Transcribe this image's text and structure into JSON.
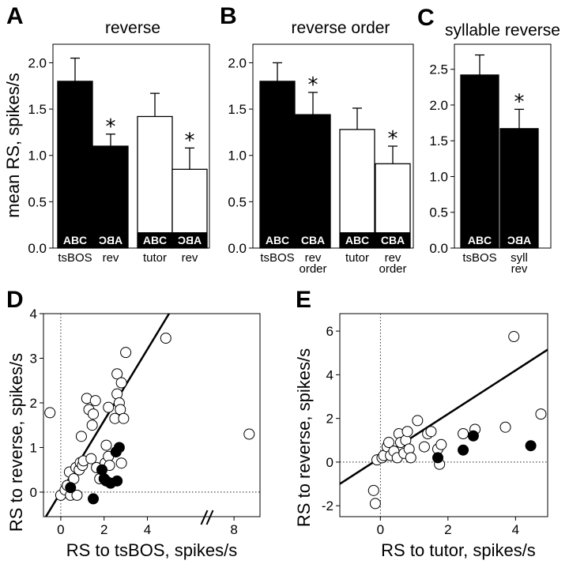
{
  "chart_data": [
    {
      "id": "A",
      "type": "bar",
      "title": "reverse",
      "ylabel": "mean RS, spikes/s",
      "ylim": [
        0,
        2.2
      ],
      "yticks": [
        "0.0",
        "0.5",
        "1.0",
        "1.5",
        "2.0"
      ],
      "categories": [
        "tsBOS",
        "rev",
        "tutor",
        "rev"
      ],
      "bar_labels": [
        "ABC",
        "ABC",
        "ABC",
        "ABC"
      ],
      "values": [
        1.8,
        1.1,
        1.42,
        0.85
      ],
      "errors": [
        0.25,
        0.13,
        0.25,
        0.23
      ],
      "colors": [
        "#000000",
        "#000000",
        "#ffffff",
        "#ffffff"
      ],
      "significant": [
        false,
        true,
        false,
        true
      ]
    },
    {
      "id": "B",
      "type": "bar",
      "title": "reverse order",
      "ylabel": "",
      "ylim": [
        0,
        2.2
      ],
      "yticks": [
        "0.0",
        "0.5",
        "1.0",
        "1.5",
        "2.0"
      ],
      "categories": [
        "tsBOS",
        "rev order",
        "tutor",
        "rev order"
      ],
      "bar_labels": [
        "ABC",
        "CBA",
        "ABC",
        "CBA"
      ],
      "values": [
        1.8,
        1.44,
        1.28,
        0.91
      ],
      "errors": [
        0.2,
        0.24,
        0.23,
        0.19
      ],
      "colors": [
        "#000000",
        "#000000",
        "#ffffff",
        "#ffffff"
      ],
      "significant": [
        false,
        true,
        false,
        true
      ]
    },
    {
      "id": "C",
      "type": "bar",
      "title": "syllable reverse",
      "ylabel": "",
      "ylim": [
        0,
        2.85
      ],
      "yticks": [
        "0.0",
        "0.5",
        "1.0",
        "1.5",
        "2.0",
        "2.5"
      ],
      "categories": [
        "tsBOS",
        "syll rev"
      ],
      "bar_labels": [
        "ABC",
        "ABC"
      ],
      "values": [
        2.42,
        1.67
      ],
      "errors": [
        0.28,
        0.27
      ],
      "colors": [
        "#000000",
        "#000000"
      ],
      "significant": [
        false,
        true
      ]
    },
    {
      "id": "D",
      "type": "scatter",
      "xlabel": "RS to tsBOS, spikes/s",
      "ylabel": "RS to reverse, spikes/s",
      "xlim": [
        -0.8,
        9.2
      ],
      "ylim": [
        -0.55,
        4.0
      ],
      "xticks": [
        "0",
        "2",
        "4",
        "8"
      ],
      "yticks": [
        "0",
        "1",
        "2",
        "3",
        "4"
      ],
      "line": {
        "slope": 0.8,
        "intercept": 0
      },
      "axis_break": "between 6 and 8",
      "open_points": [
        [
          -0.5,
          1.78
        ],
        [
          0.0,
          -0.07
        ],
        [
          0.2,
          0.05
        ],
        [
          0.3,
          0.15
        ],
        [
          0.4,
          0.45
        ],
        [
          0.45,
          -0.07
        ],
        [
          0.6,
          0.3
        ],
        [
          0.7,
          0.55
        ],
        [
          0.75,
          -0.07
        ],
        [
          0.85,
          0.5
        ],
        [
          0.9,
          0.66
        ],
        [
          0.95,
          1.25
        ],
        [
          1.0,
          0.6
        ],
        [
          1.05,
          0.7
        ],
        [
          1.2,
          2.1
        ],
        [
          1.3,
          1.85
        ],
        [
          1.4,
          0.75
        ],
        [
          1.45,
          1.5
        ],
        [
          1.5,
          1.75
        ],
        [
          1.6,
          2.05
        ],
        [
          1.65,
          0.55
        ],
        [
          1.8,
          0.3
        ],
        [
          2.05,
          0.65
        ],
        [
          2.1,
          1.05
        ],
        [
          2.2,
          0.8
        ],
        [
          2.2,
          1.9
        ],
        [
          2.25,
          0.6
        ],
        [
          2.5,
          1.65
        ],
        [
          2.6,
          2.2
        ],
        [
          2.6,
          2.65
        ],
        [
          2.7,
          2.0
        ],
        [
          2.75,
          1.85
        ],
        [
          2.8,
          0.65
        ],
        [
          2.8,
          2.45
        ],
        [
          2.9,
          1.65
        ],
        [
          3.0,
          3.13
        ],
        [
          4.85,
          3.45
        ],
        [
          8.7,
          1.3
        ]
      ],
      "filled_points": [
        [
          0.45,
          0.1
        ],
        [
          1.5,
          -0.15
        ],
        [
          1.9,
          0.5
        ],
        [
          2.0,
          0.3
        ],
        [
          2.1,
          0.25
        ],
        [
          2.3,
          0.2
        ],
        [
          2.55,
          0.9
        ],
        [
          2.6,
          0.25
        ],
        [
          2.7,
          1.0
        ]
      ]
    },
    {
      "id": "E",
      "type": "scatter",
      "xlabel": "RS to tutor, spikes/s",
      "ylabel": "RS to reverse, spikes/s",
      "xlim": [
        -1.2,
        4.95
      ],
      "ylim": [
        -2.5,
        6.8
      ],
      "xticks": [
        "0",
        "2",
        "4"
      ],
      "yticks": [
        "-2",
        "0",
        "2",
        "4",
        "6"
      ],
      "line": {
        "slope": 1.0,
        "intercept": 0.2
      },
      "open_points": [
        [
          -0.2,
          -1.3
        ],
        [
          -0.15,
          -1.9
        ],
        [
          -0.1,
          0.1
        ],
        [
          0.05,
          0.2
        ],
        [
          0.1,
          0.3
        ],
        [
          0.2,
          0.7
        ],
        [
          0.25,
          0.9
        ],
        [
          0.3,
          0.3
        ],
        [
          0.4,
          0.5
        ],
        [
          0.5,
          0.2
        ],
        [
          0.55,
          1.3
        ],
        [
          0.6,
          0.9
        ],
        [
          0.7,
          0.4
        ],
        [
          0.75,
          1.0
        ],
        [
          0.8,
          1.4
        ],
        [
          0.85,
          0.6
        ],
        [
          0.9,
          0.2
        ],
        [
          1.1,
          1.9
        ],
        [
          1.3,
          0.7
        ],
        [
          1.4,
          1.3
        ],
        [
          1.5,
          1.4
        ],
        [
          1.7,
          0.6
        ],
        [
          1.75,
          -0.1
        ],
        [
          1.8,
          0.8
        ],
        [
          2.45,
          1.3
        ],
        [
          2.8,
          1.5
        ],
        [
          3.7,
          1.6
        ],
        [
          3.95,
          5.75
        ],
        [
          4.75,
          2.2
        ]
      ],
      "filled_points": [
        [
          1.7,
          0.2
        ],
        [
          2.45,
          0.55
        ],
        [
          2.75,
          1.2
        ],
        [
          4.45,
          0.75
        ]
      ]
    }
  ]
}
